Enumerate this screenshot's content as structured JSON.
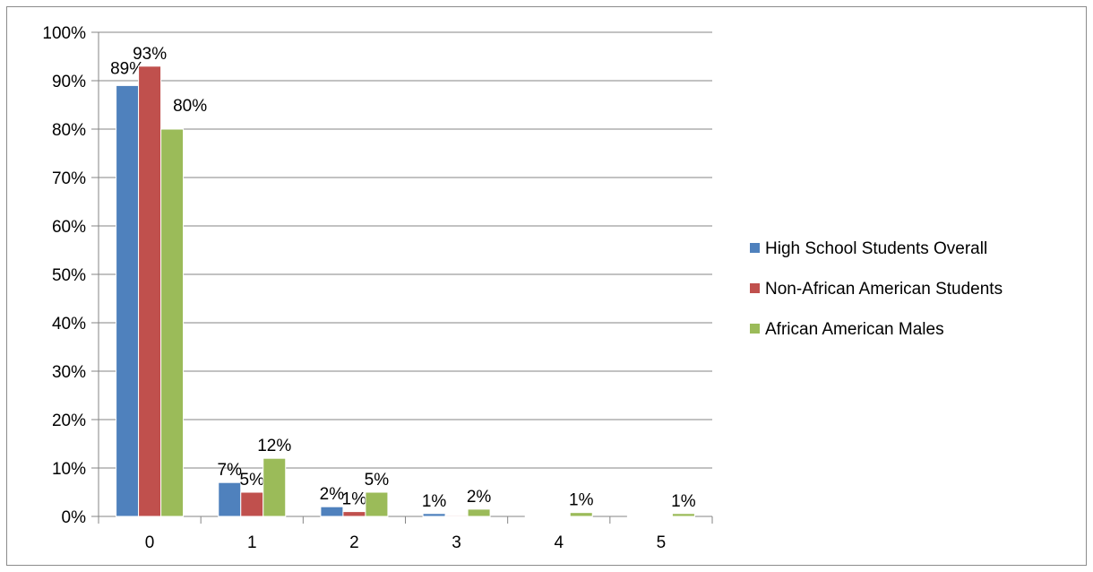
{
  "chart_data": {
    "type": "bar",
    "categories": [
      "0",
      "1",
      "2",
      "3",
      "4",
      "5"
    ],
    "series": [
      {
        "name": "High School Students Overall",
        "color": "#4F81BD",
        "values": [
          89,
          7,
          2,
          0.6,
          0.1,
          0.1
        ],
        "labels": [
          "89%",
          "7%",
          "2%",
          "1%",
          "",
          ""
        ]
      },
      {
        "name": "Non-African American Students",
        "color": "#C0504D",
        "values": [
          93,
          5,
          1,
          0.2,
          0.1,
          0.1
        ],
        "labels": [
          "93%",
          "5%",
          "1%",
          "",
          "",
          ""
        ]
      },
      {
        "name": "African American Males",
        "color": "#9BBB59",
        "values": [
          80,
          12,
          5,
          1.5,
          0.8,
          0.6
        ],
        "labels": [
          "80%",
          "12%",
          "5%",
          "2%",
          "1%",
          "1%"
        ]
      }
    ],
    "yticks": [
      "0%",
      "10%",
      "20%",
      "30%",
      "40%",
      "50%",
      "60%",
      "70%",
      "80%",
      "90%",
      "100%"
    ],
    "ylim": [
      0,
      100
    ],
    "grid": true,
    "legend_position": "right"
  }
}
